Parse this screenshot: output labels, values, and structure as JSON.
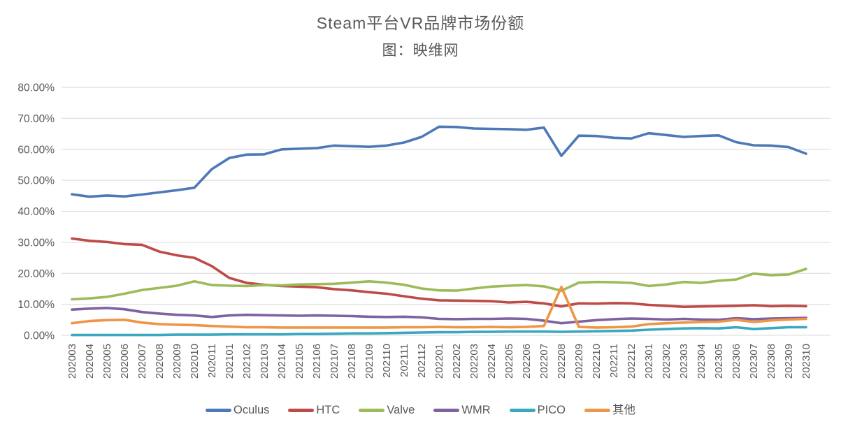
{
  "chart": {
    "title": "Steam平台VR品牌市场份额",
    "subtitle": "图：映维网"
  },
  "chart_data": {
    "type": "line",
    "title": "Steam平台VR品牌市场份额",
    "subtitle": "图：映维网",
    "grid": true,
    "legend_position": "bottom",
    "text_color": "#595959",
    "grid_color": "#D9D9D9",
    "ylim": [
      0,
      80
    ],
    "y_tick_step": 10,
    "y_tick_suffix": "%",
    "y_tick_decimals": 2,
    "categories": [
      "202003",
      "202004",
      "202005",
      "202006",
      "202007",
      "202008",
      "202009",
      "202010",
      "202011",
      "202101",
      "202102",
      "202103",
      "202104",
      "202105",
      "202106",
      "202107",
      "202108",
      "202109",
      "202110",
      "202111",
      "202112",
      "202201",
      "202202",
      "202203",
      "202204",
      "202205",
      "202206",
      "202207",
      "202208",
      "202209",
      "202210",
      "202211",
      "202212",
      "202301",
      "202302",
      "202303",
      "202304",
      "202305",
      "202306",
      "202307",
      "202308",
      "202309",
      "202310"
    ],
    "series": [
      {
        "name": "Oculus",
        "color": "#4E79B7",
        "values": [
          45.5,
          44.7,
          45.1,
          44.8,
          45.4,
          46.1,
          46.8,
          47.6,
          53.6,
          57.2,
          58.3,
          58.4,
          60.0,
          60.2,
          60.4,
          61.2,
          61.0,
          60.8,
          61.2,
          62.2,
          64.0,
          67.3,
          67.2,
          66.7,
          66.6,
          66.5,
          66.3,
          67.0,
          57.9,
          64.4,
          64.3,
          63.7,
          63.5,
          65.2,
          64.6,
          64.0,
          64.3,
          64.5,
          62.3,
          61.3,
          61.2,
          60.7,
          58.6
        ]
      },
      {
        "name": "HTC",
        "color": "#BE4B48",
        "values": [
          31.2,
          30.5,
          30.1,
          29.4,
          29.2,
          27.0,
          25.8,
          25.0,
          22.3,
          18.5,
          16.9,
          16.3,
          15.9,
          15.7,
          15.5,
          14.9,
          14.5,
          13.9,
          13.4,
          12.6,
          11.8,
          11.3,
          11.2,
          11.1,
          11.0,
          10.6,
          10.8,
          10.3,
          9.3,
          10.3,
          10.2,
          10.4,
          10.3,
          9.8,
          9.5,
          9.2,
          9.3,
          9.4,
          9.5,
          9.7,
          9.4,
          9.5,
          9.4
        ]
      },
      {
        "name": "Valve",
        "color": "#9CBB59",
        "values": [
          11.6,
          11.9,
          12.4,
          13.4,
          14.6,
          15.3,
          16.0,
          17.4,
          16.2,
          16.0,
          15.9,
          16.2,
          16.1,
          16.4,
          16.5,
          16.6,
          17.0,
          17.4,
          17.0,
          16.3,
          15.1,
          14.5,
          14.4,
          15.1,
          15.7,
          16.0,
          16.2,
          15.8,
          14.4,
          17.0,
          17.2,
          17.1,
          16.9,
          15.9,
          16.4,
          17.2,
          16.9,
          17.6,
          18.0,
          19.9,
          19.4,
          19.6,
          21.4
        ]
      },
      {
        "name": "WMR",
        "color": "#7E62A1",
        "values": [
          8.3,
          8.6,
          8.8,
          8.4,
          7.5,
          7.0,
          6.6,
          6.4,
          5.9,
          6.4,
          6.6,
          6.5,
          6.4,
          6.3,
          6.4,
          6.3,
          6.2,
          6.0,
          5.9,
          6.0,
          5.8,
          5.3,
          5.2,
          5.3,
          5.3,
          5.4,
          5.3,
          4.7,
          3.9,
          4.4,
          4.9,
          5.2,
          5.4,
          5.3,
          5.1,
          5.3,
          5.1,
          5.0,
          5.5,
          5.2,
          5.4,
          5.5,
          5.6
        ]
      },
      {
        "name": "PICO",
        "color": "#3AA8BF",
        "values": [
          0.1,
          0.1,
          0.1,
          0.1,
          0.1,
          0.1,
          0.2,
          0.2,
          0.2,
          0.3,
          0.3,
          0.3,
          0.3,
          0.4,
          0.4,
          0.5,
          0.6,
          0.6,
          0.7,
          0.8,
          0.9,
          1.0,
          1.0,
          1.1,
          1.1,
          1.2,
          1.2,
          1.2,
          1.1,
          1.2,
          1.3,
          1.4,
          1.5,
          1.8,
          2.0,
          2.2,
          2.3,
          2.2,
          2.6,
          2.0,
          2.3,
          2.6,
          2.6
        ]
      },
      {
        "name": "其他",
        "color": "#EF9546",
        "values": [
          3.9,
          4.6,
          4.9,
          5.0,
          4.1,
          3.6,
          3.4,
          3.3,
          3.0,
          2.8,
          2.6,
          2.6,
          2.5,
          2.5,
          2.5,
          2.5,
          2.5,
          2.5,
          2.5,
          2.6,
          2.6,
          2.7,
          2.6,
          2.6,
          2.7,
          2.6,
          2.7,
          3.0,
          15.6,
          2.7,
          2.5,
          2.6,
          2.8,
          3.6,
          3.9,
          4.1,
          4.3,
          4.4,
          5.0,
          4.3,
          4.8,
          5.1,
          5.3
        ]
      }
    ]
  }
}
